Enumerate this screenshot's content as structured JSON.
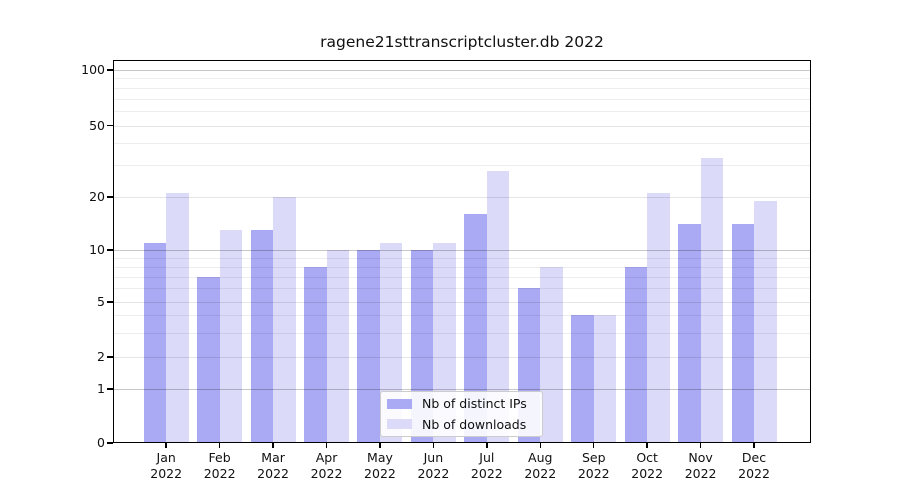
{
  "title": "ragene21sttranscriptcluster.db 2022",
  "colors": {
    "distinct_ips": "#aaa9f3",
    "downloads": "#dbdaf9",
    "grid_decade": "rgba(0,0,0,0.22)",
    "grid_labeled": "rgba(0,0,0,0.10)",
    "grid_minor": "rgba(0,0,0,0.07)"
  },
  "legend": {
    "items": [
      {
        "label": "Nb of distinct IPs",
        "color_key": "distinct_ips"
      },
      {
        "label": "Nb of downloads",
        "color_key": "downloads"
      }
    ]
  },
  "chart_data": {
    "type": "bar",
    "title": "ragene21sttranscriptcluster.db 2022",
    "categories": [
      "Jan",
      "Feb",
      "Mar",
      "Apr",
      "May",
      "Jun",
      "Jul",
      "Aug",
      "Sep",
      "Oct",
      "Nov",
      "Dec"
    ],
    "year_label": "2022",
    "series": [
      {
        "name": "Nb of distinct IPs",
        "values": [
          11,
          7,
          13,
          8,
          10,
          10,
          16,
          6,
          4,
          8,
          14,
          14
        ],
        "color": "#aaa9f3"
      },
      {
        "name": "Nb of downloads",
        "values": [
          21,
          13,
          20,
          10,
          11,
          11,
          28,
          8,
          4,
          21,
          33,
          19
        ],
        "color": "#dbdaf9"
      }
    ],
    "xlabel": "",
    "ylabel": "",
    "yscale": "log-like with zero baseline",
    "ylim": [
      0,
      120
    ],
    "yticks": [
      {
        "v": 100,
        "label": "100"
      },
      {
        "v": 50,
        "label": "50"
      },
      {
        "v": 20,
        "label": "20"
      },
      {
        "v": 10,
        "label": "10"
      },
      {
        "v": 5,
        "label": "5"
      },
      {
        "v": 2,
        "label": "2"
      },
      {
        "v": 1,
        "label": "1"
      },
      {
        "v": 0,
        "label": "0"
      }
    ],
    "gridlines_minor": [
      3,
      4,
      6,
      7,
      8,
      9,
      30,
      40,
      60,
      70,
      80,
      90
    ],
    "grid": true,
    "legend_position": "lower center"
  }
}
